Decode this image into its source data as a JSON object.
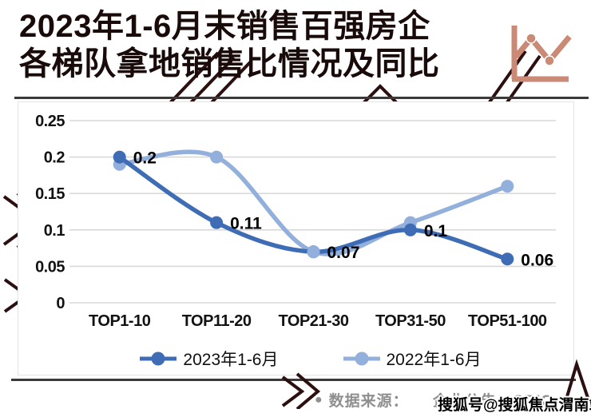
{
  "title": {
    "line1": "2023年1-6月末销售百强房企",
    "line2": "各梯队拿地销售比情况及同比"
  },
  "chart_data": {
    "type": "line",
    "title": "2023年1-6月末销售百强房企各梯队拿地销售比情况及同比",
    "categories": [
      "TOP1-10",
      "TOP11-20",
      "TOP21-30",
      "TOP31-50",
      "TOP51-100"
    ],
    "series": [
      {
        "name": "2023年1-6月",
        "color": "#3e6cb5",
        "values": [
          0.2,
          0.11,
          0.07,
          0.1,
          0.06
        ],
        "point_labels": [
          "0.2",
          "0.11",
          "0.07",
          "0.1",
          "0.06"
        ]
      },
      {
        "name": "2022年1-6月",
        "color": "#93afdb",
        "values": [
          0.19,
          0.2,
          0.07,
          0.11,
          0.16
        ],
        "point_labels": []
      }
    ],
    "ylim": [
      0,
      0.25
    ],
    "yticks": [
      {
        "value": 0.25,
        "label": "0.25"
      },
      {
        "value": 0.2,
        "label": "0.2"
      },
      {
        "value": 0.15,
        "label": "0.15"
      },
      {
        "value": 0.1,
        "label": "0.1"
      },
      {
        "value": 0.05,
        "label": "0.05"
      },
      {
        "value": 0,
        "label": "0"
      }
    ],
    "grid": true,
    "smooth": true,
    "legend_position": "bottom-center",
    "xlabel": "",
    "ylabel": ""
  },
  "footer": {
    "bullet": "●",
    "source_label": "数据来源：",
    "source_value": "企业公告，CRIC"
  },
  "watermark": {
    "text": "搜狐号@搜狐焦点渭南站"
  },
  "colors": {
    "series_2023": "#3e6cb5",
    "series_2022": "#93afdb",
    "gridline": "#d9d9d9",
    "title_text": "#1a0b0b",
    "icon_accent": "#ca8a75",
    "divider": "#3a3a3a",
    "source_text": "#8f8f8f",
    "watermark_pattern": "#2c0f10",
    "panel_bg": "#ffffff"
  }
}
